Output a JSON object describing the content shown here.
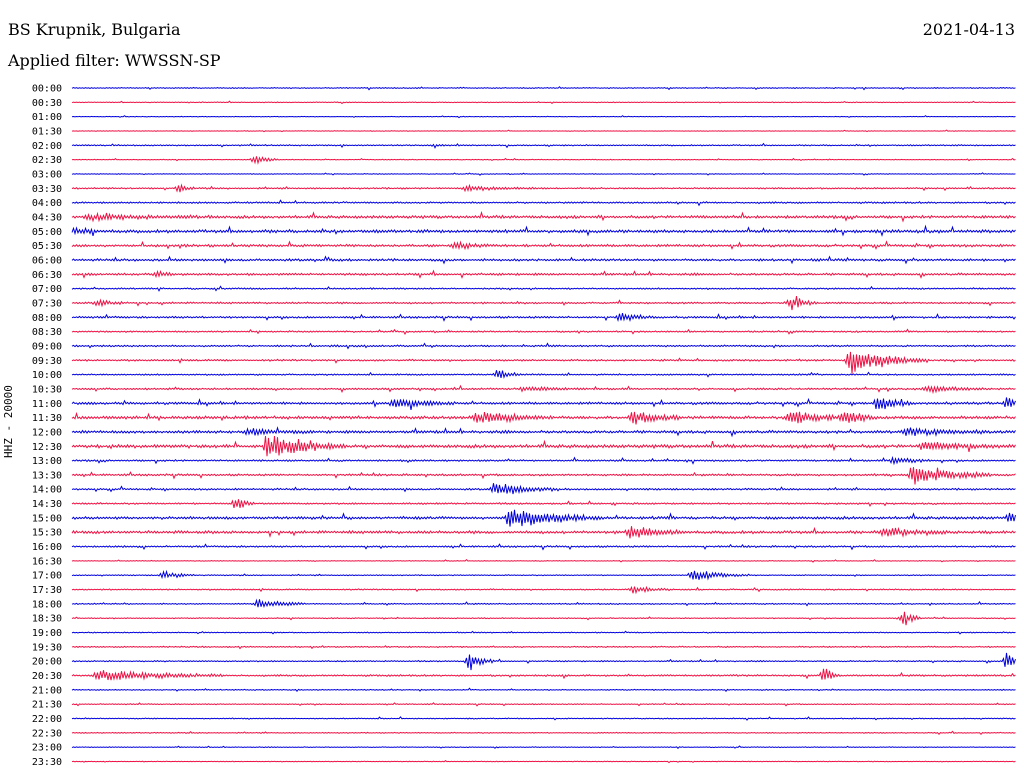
{
  "header": {
    "station": "BS Krupnik, Bulgaria",
    "date": "2021-04-13",
    "filter_label": "Applied filter: WWSSN-SP"
  },
  "colors": {
    "even_trace": "#0000dd",
    "odd_trace": "#ee1144",
    "background": "#ffffff"
  },
  "chart_data": {
    "type": "line",
    "title": "",
    "ylabel": "HHZ - 20000",
    "xlabel": "",
    "row_labels": [
      "00:00",
      "00:30",
      "01:00",
      "01:30",
      "02:00",
      "02:30",
      "03:00",
      "03:30",
      "04:00",
      "04:30",
      "05:00",
      "05:30",
      "06:00",
      "06:30",
      "07:00",
      "07:30",
      "08:00",
      "08:30",
      "09:00",
      "09:30",
      "10:00",
      "10:30",
      "11:00",
      "11:30",
      "12:00",
      "12:30",
      "13:00",
      "13:30",
      "14:00",
      "14:30",
      "15:00",
      "15:30",
      "16:00",
      "16:30",
      "17:00",
      "17:30",
      "18:00",
      "18:30",
      "19:00",
      "19:30",
      "20:00",
      "20:30",
      "21:00",
      "21:30",
      "22:00",
      "22:30",
      "23:00",
      "23:30"
    ],
    "row_minutes": 30,
    "noise_level": [
      0.4,
      0.3,
      0.25,
      0.25,
      0.5,
      0.3,
      0.3,
      0.6,
      0.7,
      1.1,
      1.2,
      1.0,
      0.9,
      0.9,
      0.6,
      0.7,
      0.8,
      0.6,
      0.7,
      0.7,
      0.6,
      0.7,
      1.0,
      1.2,
      1.1,
      1.3,
      0.7,
      0.8,
      0.7,
      0.7,
      1.1,
      1.1,
      0.7,
      0.3,
      0.4,
      0.5,
      0.5,
      0.4,
      0.4,
      0.5,
      0.5,
      0.7,
      0.4,
      0.4,
      0.4,
      0.4,
      0.3,
      0.3
    ],
    "events": [
      {
        "row": 4,
        "minute": 11.5,
        "amplitude": 2,
        "duration_min": 0.6
      },
      {
        "row": 5,
        "minute": 5.8,
        "amplitude": 6,
        "duration_min": 0.8
      },
      {
        "row": 7,
        "minute": 3.4,
        "amplitude": 5,
        "duration_min": 0.5
      },
      {
        "row": 7,
        "minute": 12.5,
        "amplitude": 3,
        "duration_min": 2.5
      },
      {
        "row": 9,
        "minute": 0.5,
        "amplitude": 3,
        "duration_min": 4
      },
      {
        "row": 10,
        "minute": 0.1,
        "amplitude": 4,
        "duration_min": 0.8
      },
      {
        "row": 11,
        "minute": 12.2,
        "amplitude": 5,
        "duration_min": 1.2
      },
      {
        "row": 13,
        "minute": 2.7,
        "amplitude": 5,
        "duration_min": 0.6
      },
      {
        "row": 15,
        "minute": 0.8,
        "amplitude": 4,
        "duration_min": 1.0
      },
      {
        "row": 15,
        "minute": 22.9,
        "amplitude": 10,
        "duration_min": 0.8
      },
      {
        "row": 16,
        "minute": 17.4,
        "amplitude": 5,
        "duration_min": 1.2
      },
      {
        "row": 19,
        "minute": 24.7,
        "amplitude": 16,
        "duration_min": 2.5
      },
      {
        "row": 20,
        "minute": 13.5,
        "amplitude": 6,
        "duration_min": 0.8
      },
      {
        "row": 21,
        "minute": 14.3,
        "amplitude": 3,
        "duration_min": 2
      },
      {
        "row": 21,
        "minute": 27.1,
        "amplitude": 4,
        "duration_min": 2
      },
      {
        "row": 22,
        "minute": 10.2,
        "amplitude": 6,
        "duration_min": 2
      },
      {
        "row": 22,
        "minute": 25.6,
        "amplitude": 10,
        "duration_min": 1.0
      },
      {
        "row": 22,
        "minute": 29.7,
        "amplitude": 8,
        "duration_min": 0.8
      },
      {
        "row": 23,
        "minute": 12.8,
        "amplitude": 7,
        "duration_min": 2.5
      },
      {
        "row": 23,
        "minute": 17.8,
        "amplitude": 8,
        "duration_min": 1.5
      },
      {
        "row": 23,
        "minute": 22.8,
        "amplitude": 8,
        "duration_min": 2
      },
      {
        "row": 23,
        "minute": 24.5,
        "amplitude": 10,
        "duration_min": 1
      },
      {
        "row": 24,
        "minute": 5.6,
        "amplitude": 4,
        "duration_min": 2
      },
      {
        "row": 24,
        "minute": 26.5,
        "amplitude": 5,
        "duration_min": 2.5
      },
      {
        "row": 25,
        "minute": 6.2,
        "amplitude": 16,
        "duration_min": 2.5
      },
      {
        "row": 25,
        "minute": 27.0,
        "amplitude": 4,
        "duration_min": 3
      },
      {
        "row": 26,
        "minute": 26.1,
        "amplitude": 5,
        "duration_min": 1.2
      },
      {
        "row": 27,
        "minute": 26.7,
        "amplitude": 12,
        "duration_min": 2.5
      },
      {
        "row": 28,
        "minute": 13.4,
        "amplitude": 8,
        "duration_min": 2
      },
      {
        "row": 29,
        "minute": 5.2,
        "amplitude": 8,
        "duration_min": 0.6
      },
      {
        "row": 30,
        "minute": 13.9,
        "amplitude": 12,
        "duration_min": 3
      },
      {
        "row": 30,
        "minute": 29.8,
        "amplitude": 7,
        "duration_min": 1
      },
      {
        "row": 31,
        "minute": 17.7,
        "amplitude": 7,
        "duration_min": 1.8
      },
      {
        "row": 31,
        "minute": 25.8,
        "amplitude": 6,
        "duration_min": 2
      },
      {
        "row": 34,
        "minute": 2.9,
        "amplitude": 5,
        "duration_min": 1
      },
      {
        "row": 34,
        "minute": 19.7,
        "amplitude": 7,
        "duration_min": 1.8
      },
      {
        "row": 35,
        "minute": 17.8,
        "amplitude": 5,
        "duration_min": 1.2
      },
      {
        "row": 36,
        "minute": 5.9,
        "amplitude": 6,
        "duration_min": 1.5
      },
      {
        "row": 37,
        "minute": 26.4,
        "amplitude": 12,
        "duration_min": 0.6
      },
      {
        "row": 40,
        "minute": 12.6,
        "amplitude": 12,
        "duration_min": 0.8
      },
      {
        "row": 40,
        "minute": 29.7,
        "amplitude": 16,
        "duration_min": 0.5
      },
      {
        "row": 41,
        "minute": 0.8,
        "amplitude": 7,
        "duration_min": 4
      },
      {
        "row": 41,
        "minute": 23.9,
        "amplitude": 10,
        "duration_min": 0.5
      }
    ]
  }
}
